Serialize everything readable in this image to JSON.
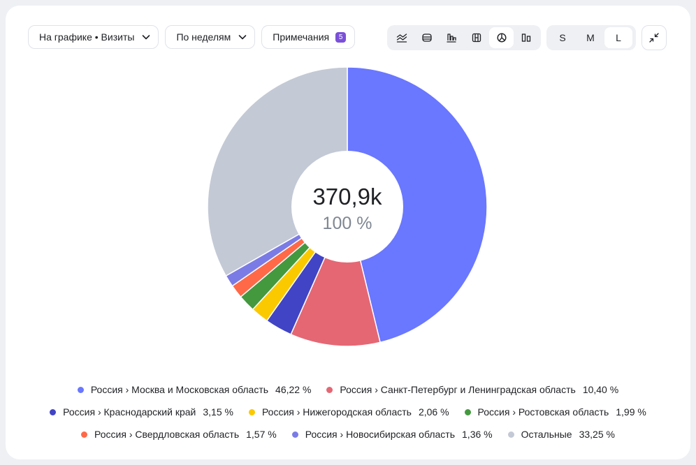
{
  "toolbar": {
    "metric_label": "На графике • Визиты",
    "period_label": "По неделям",
    "notes_label": "Примечания",
    "notes_count": "5"
  },
  "chart_type_buttons": [
    "line-chart-icon",
    "stacked-area-icon",
    "bar-chart-icon",
    "table-chart-icon",
    "pie-chart-icon",
    "column-chart-icon"
  ],
  "chart_type_selected": "pie-chart-icon",
  "size_buttons": [
    "S",
    "M",
    "L"
  ],
  "size_selected": "L",
  "center": {
    "value": "370,9k",
    "percent": "100 %"
  },
  "chart_data": {
    "type": "pie",
    "donut": true,
    "slices": [
      {
        "label": "Россия › Москва и Московская область",
        "value": 46.22,
        "display": "46,22 %",
        "color": "#6a77ff"
      },
      {
        "label": "Россия › Санкт-Петербург и Ленинградская область",
        "value": 10.4,
        "display": "10,40 %",
        "color": "#e56774"
      },
      {
        "label": "Россия › Краснодарский край",
        "value": 3.15,
        "display": "3,15 %",
        "color": "#4144c4"
      },
      {
        "label": "Россия › Нижегородская область",
        "value": 2.06,
        "display": "2,06 %",
        "color": "#fbc900"
      },
      {
        "label": "Россия › Ростовская область",
        "value": 1.99,
        "display": "1,99 %",
        "color": "#44993f"
      },
      {
        "label": "Россия › Свердловская область",
        "value": 1.57,
        "display": "1,57 %",
        "color": "#ff6948"
      },
      {
        "label": "Россия › Новосибирская область",
        "value": 1.36,
        "display": "1,36 %",
        "color": "#7b7be6"
      },
      {
        "label": "Остальные",
        "value": 33.25,
        "display": "33,25 %",
        "color": "#c3c9d5"
      }
    ],
    "legend_placement": "bottom"
  },
  "colors": {
    "accent": "#7b50d9",
    "background": "#eef0f4",
    "card": "#ffffff"
  }
}
